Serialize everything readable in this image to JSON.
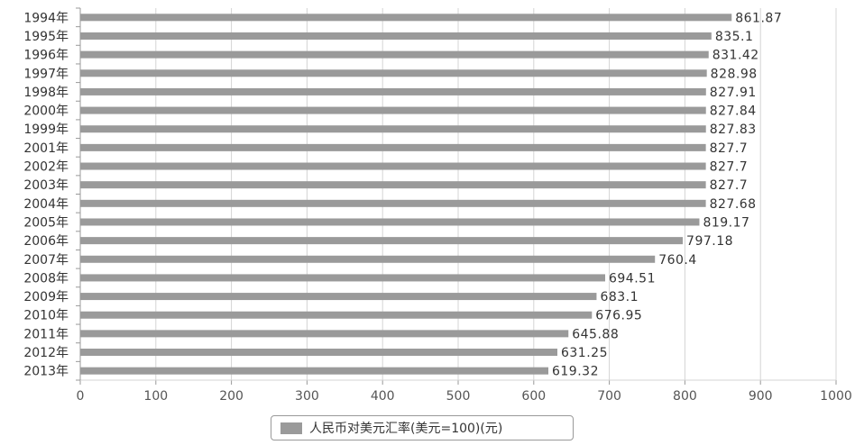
{
  "chart_data": {
    "type": "bar",
    "orientation": "horizontal",
    "categories": [
      "1994年",
      "1995年",
      "1996年",
      "1997年",
      "1998年",
      "2000年",
      "1999年",
      "2001年",
      "2002年",
      "2003年",
      "2004年",
      "2005年",
      "2006年",
      "2007年",
      "2008年",
      "2009年",
      "2010年",
      "2011年",
      "2012年",
      "2013年"
    ],
    "series": [
      {
        "name": "人民币对美元汇率(美元=100)(元)",
        "values": [
          861.87,
          835.1,
          831.42,
          828.98,
          827.91,
          827.84,
          827.83,
          827.7,
          827.7,
          827.7,
          827.68,
          819.17,
          797.18,
          760.4,
          694.51,
          683.1,
          676.95,
          645.88,
          631.25,
          619.32
        ],
        "labels": [
          "861.87",
          "835.1",
          "831.42",
          "828.98",
          "827.91",
          "827.84",
          "827.83",
          "827.7",
          "827.7",
          "827.7",
          "827.68",
          "819.17",
          "797.18",
          "760.4",
          "694.51",
          "683.1",
          "676.95",
          "645.88",
          "631.25",
          "619.32"
        ],
        "color": "#9a9a9a"
      }
    ],
    "xlim": [
      0,
      1000
    ],
    "xticks": [
      "0",
      "100",
      "200",
      "300",
      "400",
      "500",
      "600",
      "700",
      "800",
      "900",
      "1000"
    ],
    "grid": true,
    "legend_position": "bottom"
  }
}
